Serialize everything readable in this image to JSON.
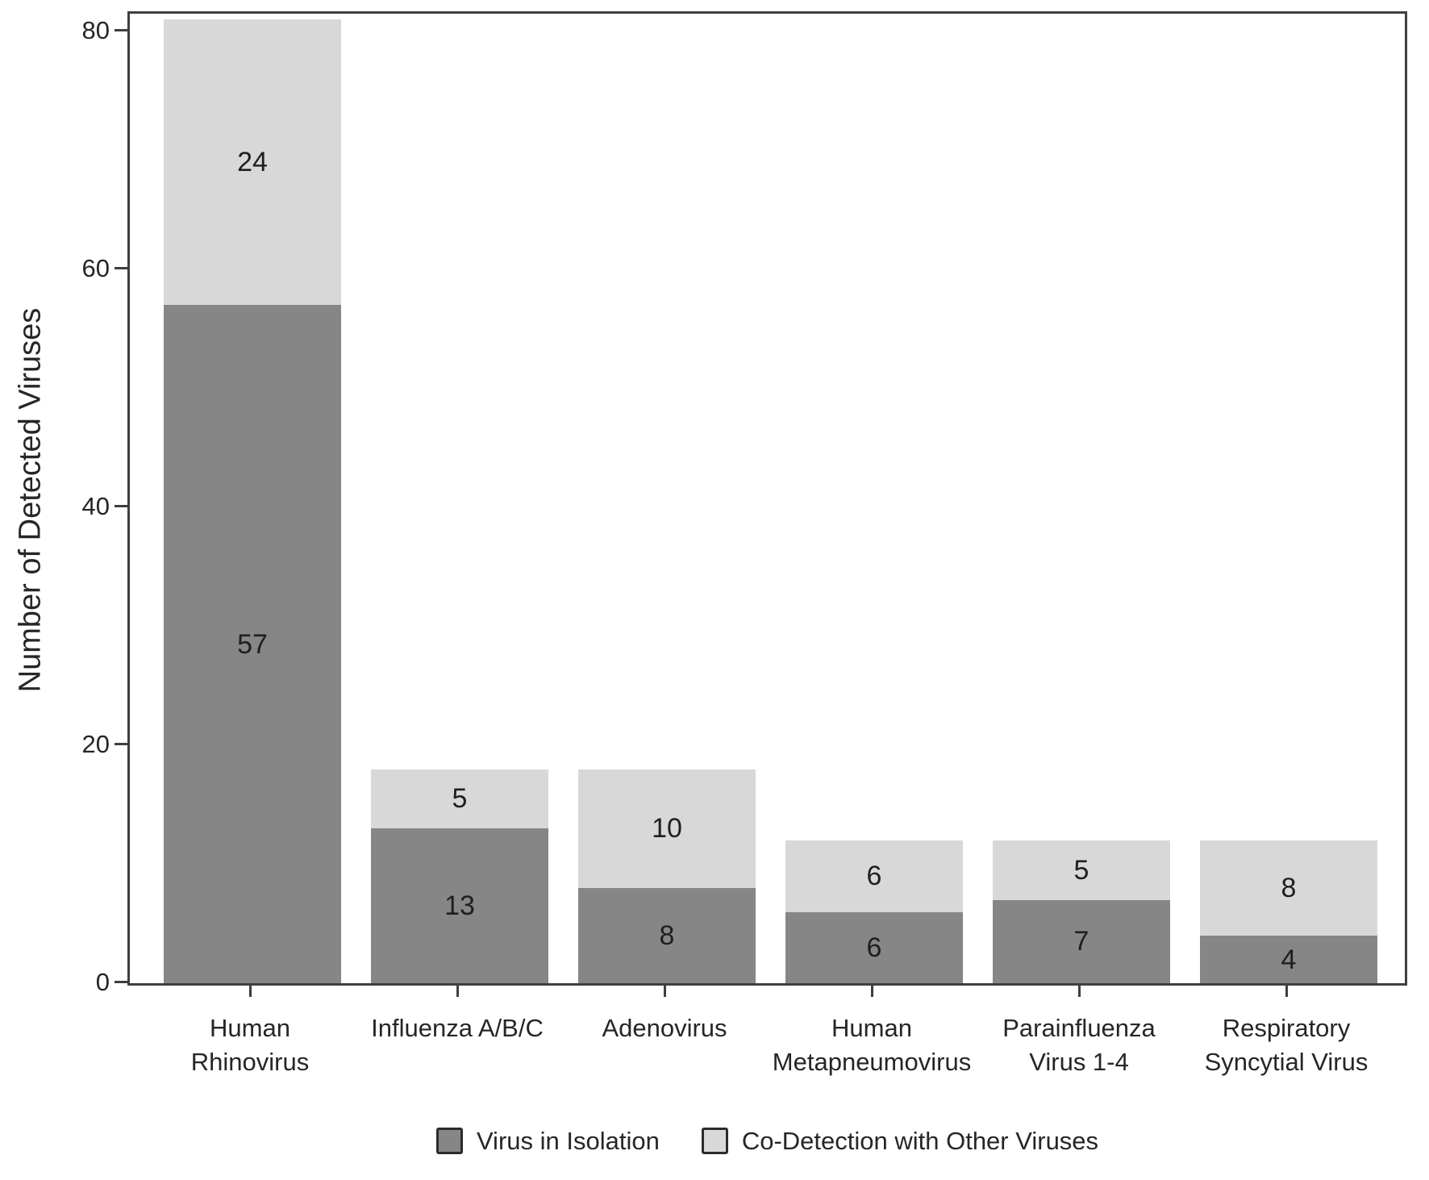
{
  "chart_data": {
    "type": "bar",
    "stacked": true,
    "title": "",
    "xlabel": "",
    "ylabel": "Number of Detected Viruses",
    "ylim": [
      0,
      82
    ],
    "yticks": [
      0,
      20,
      40,
      60,
      80
    ],
    "grid": false,
    "legend_position": "bottom",
    "categories": [
      "Human Rhinovirus",
      "Influenza A/B/C",
      "Adenovirus",
      "Human Metapneumovirus",
      "Parainfluenza Virus 1-4",
      "Respiratory Syncytial Virus"
    ],
    "category_lines": [
      [
        "Human",
        "Rhinovirus"
      ],
      [
        "Influenza A/B/C"
      ],
      [
        "Adenovirus"
      ],
      [
        "Human",
        "Metapneumovirus"
      ],
      [
        "Parainfluenza",
        "Virus 1-4"
      ],
      [
        "Respiratory",
        "Syncytial Virus"
      ]
    ],
    "series": [
      {
        "name": "Virus in Isolation",
        "color": "#868686",
        "values": [
          57,
          13,
          8,
          6,
          7,
          4
        ]
      },
      {
        "name": "Co-Detection with Other Viruses",
        "color": "#d8d8d8",
        "values": [
          24,
          5,
          10,
          6,
          5,
          8
        ]
      }
    ],
    "totals": [
      81,
      18,
      18,
      12,
      12,
      12
    ],
    "axis_color": "#3f3f3f",
    "text_color": "#262626",
    "background_color": "#ffffff"
  }
}
